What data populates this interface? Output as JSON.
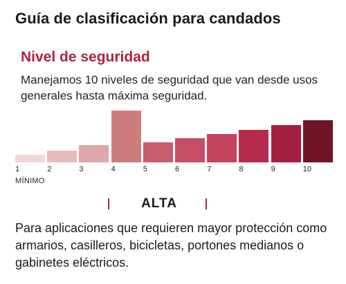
{
  "title": "Guía de clasificación para candados",
  "section": {
    "title": "Nivel de seguridad",
    "description": "Manejamos 10 niveles de seguridad que van desde usos generales hasta máxima seguridad."
  },
  "scale": {
    "levels": [
      "1",
      "2",
      "3",
      "4",
      "5",
      "6",
      "7",
      "8",
      "9",
      "10"
    ],
    "heights": [
      0.14,
      0.23,
      0.33,
      1.0,
      0.38,
      0.46,
      0.55,
      0.63,
      0.72,
      0.81
    ],
    "colors": [
      "#f0d9d6",
      "#e6bcbb",
      "#dca8a8",
      "#cc7e7e",
      "#c95c6d",
      "#c54e64",
      "#c2425b",
      "#b62a4b",
      "#a51e3f",
      "#6e1424"
    ],
    "selected_level": 4,
    "min_label": "MÍNIMO"
  },
  "level": {
    "name": "ALTA",
    "accent_color": "#b1223f",
    "description": "Para aplicaciones que requieren mayor protección como armarios, casilleros, bicicletas, portones medianos o gabinetes eléctricos."
  }
}
